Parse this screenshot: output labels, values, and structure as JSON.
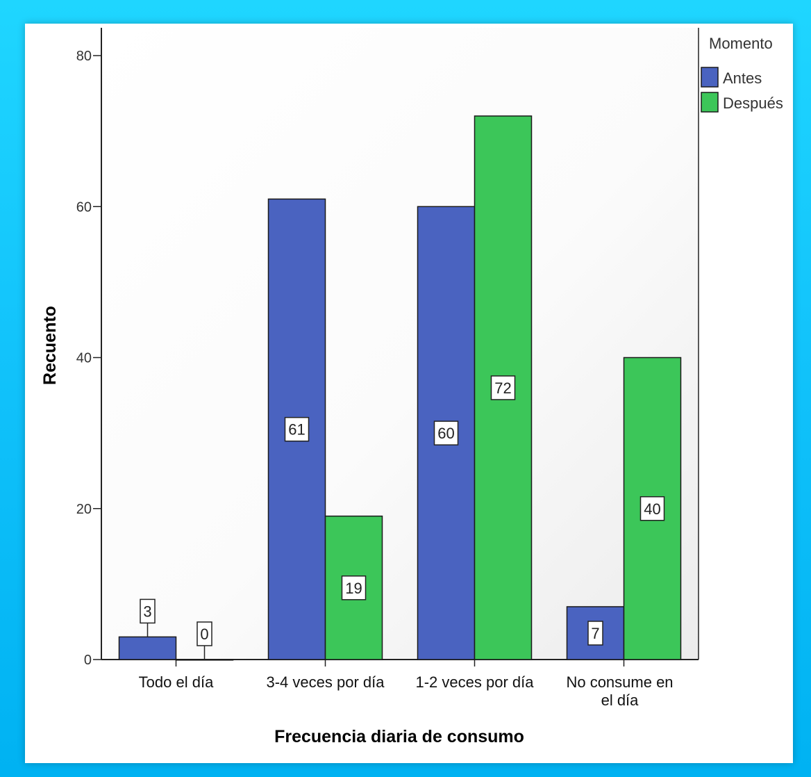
{
  "chart_data": {
    "type": "bar",
    "categories": [
      "Todo el día",
      "3-4 veces por día",
      "1-2 veces por día",
      "No consume en el día"
    ],
    "category_lines": [
      [
        "Todo el día"
      ],
      [
        "3-4 veces por día"
      ],
      [
        "1-2 veces por día"
      ],
      [
        "No consume en",
        "el día"
      ]
    ],
    "series": [
      {
        "name": "Antes",
        "values": [
          3,
          61,
          60,
          7
        ],
        "color": "#4a63c0"
      },
      {
        "name": "Después",
        "values": [
          0,
          19,
          72,
          40
        ],
        "color": "#3cc659"
      }
    ],
    "data_labels": [
      [
        "3",
        "61",
        "60",
        "7"
      ],
      [
        "0",
        "19",
        "72",
        "40"
      ]
    ],
    "title": "",
    "xlabel": "Frecuencia diaria de consumo",
    "ylabel": "Recuento",
    "ylim": [
      0,
      80
    ],
    "yticks": [
      "0",
      "20",
      "40",
      "60",
      "80"
    ],
    "legend": {
      "title": "Momento",
      "position": "top-right"
    },
    "grid": false
  }
}
